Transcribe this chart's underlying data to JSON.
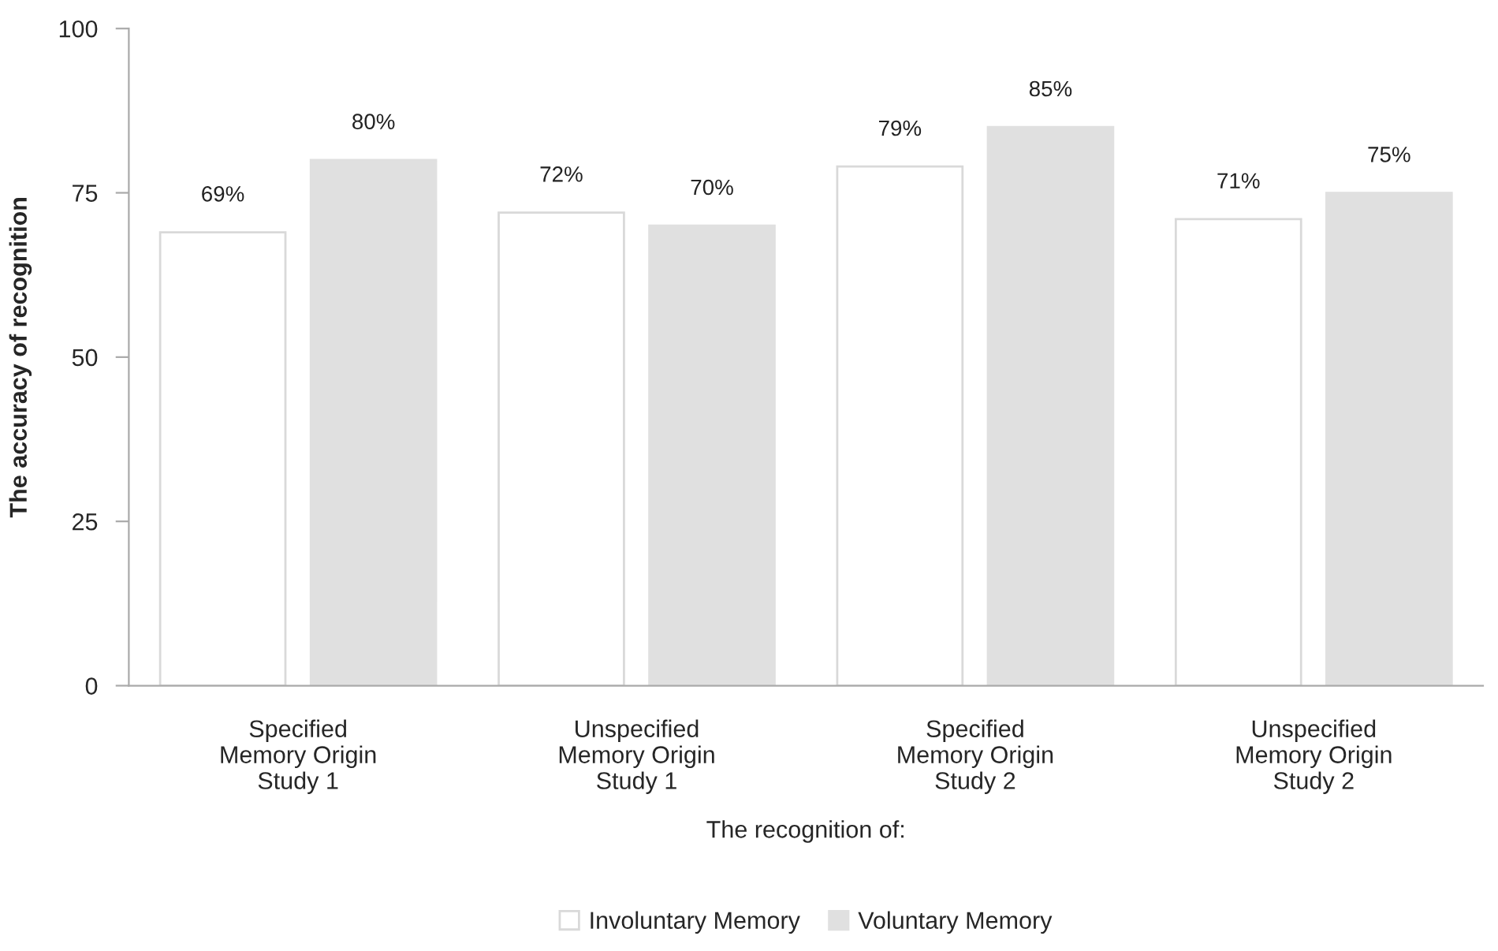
{
  "chart_data": {
    "type": "bar",
    "ylabel": "The accuracy of recognition",
    "xlabel": "The recognition of:",
    "categories": [
      "Specified\nMemory Origin\nStudy 1",
      "Unspecified\nMemory Origin\nStudy 1",
      "Specified\nMemory Origin\nStudy 2",
      "Unspecified\nMemory Origin\nStudy 2"
    ],
    "series": [
      {
        "name": "Involuntary Memory",
        "color": "#ffffff",
        "values": [
          69,
          72,
          79,
          71
        ],
        "value_labels": [
          "69%",
          "72%",
          "79%",
          "71%"
        ]
      },
      {
        "name": "Voluntary Memory",
        "color": "#e0e0e0",
        "values": [
          80,
          70,
          85,
          75
        ],
        "value_labels": [
          "80%",
          "70%",
          "85%",
          "75%"
        ]
      }
    ],
    "ylim": [
      0,
      100
    ],
    "yticks": [
      0,
      25,
      50,
      75,
      100
    ],
    "grid": false,
    "legend": "bottom"
  }
}
